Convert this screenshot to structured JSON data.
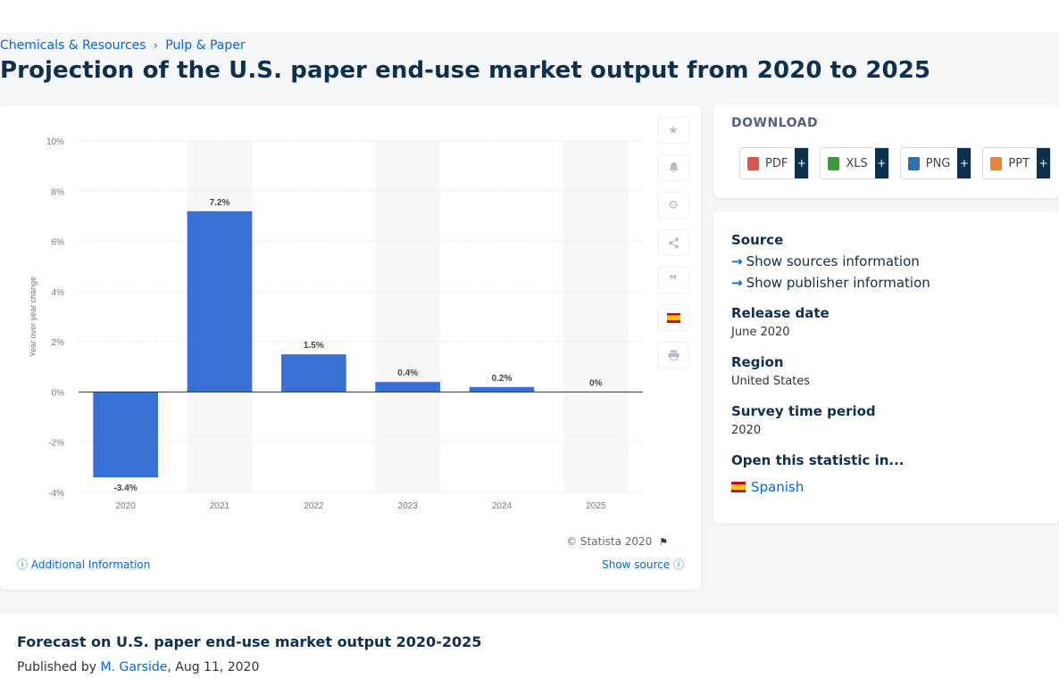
{
  "breadcrumb": {
    "item1": "Chemicals & Resources",
    "separator": "›",
    "item2": "Pulp & Paper"
  },
  "page_title": "Projection of the U.S. paper end-use market output from 2020 to 2025",
  "chart_data": {
    "type": "bar",
    "categories": [
      "2020",
      "2021",
      "2022",
      "2023",
      "2024",
      "2025"
    ],
    "values": [
      -3.4,
      7.2,
      1.5,
      0.4,
      0.2,
      0
    ],
    "data_labels": [
      "-3.4%",
      "7.2%",
      "1.5%",
      "0.4%",
      "0.2%",
      "0%"
    ],
    "ylabel": "Year over year change",
    "xlabel": "",
    "ylim": [
      -4,
      10
    ],
    "yticks": [
      -4,
      -2,
      0,
      2,
      4,
      6,
      8,
      10
    ],
    "ytick_labels": [
      "-4%",
      "-2%",
      "0%",
      "2%",
      "4%",
      "6%",
      "8%",
      "10%"
    ],
    "bar_color": "#3870d6",
    "grid": true
  },
  "chart_footer": {
    "copyright": "© Statista 2020",
    "additional_info": "Additional Information",
    "show_source": "Show source"
  },
  "tools": [
    "star-icon",
    "bell-icon",
    "gear-icon",
    "share-icon",
    "quote-icon",
    "spanish-flag-icon",
    "print-icon"
  ],
  "download": {
    "title": "DOWNLOAD",
    "buttons": [
      {
        "label": "PDF",
        "color": "#d9534f"
      },
      {
        "label": "XLS",
        "color": "#3c9a3c"
      },
      {
        "label": "PNG",
        "color": "#2f6fb5"
      },
      {
        "label": "PPT",
        "color": "#e8833a"
      }
    ],
    "plus": "+"
  },
  "meta": {
    "source_label": "Source",
    "show_sources": "Show sources information",
    "show_publisher": "Show publisher information",
    "release_date_label": "Release date",
    "release_date": "June 2020",
    "region_label": "Region",
    "region": "United States",
    "survey_period_label": "Survey time period",
    "survey_period": "2020",
    "open_in_label": "Open this statistic in...",
    "open_in_language": "Spanish"
  },
  "article": {
    "title": "Forecast on U.S. paper end-use market output 2020-2025",
    "published_by": "Published by",
    "author": "M. Garside",
    "date": ", Aug 11, 2020"
  }
}
